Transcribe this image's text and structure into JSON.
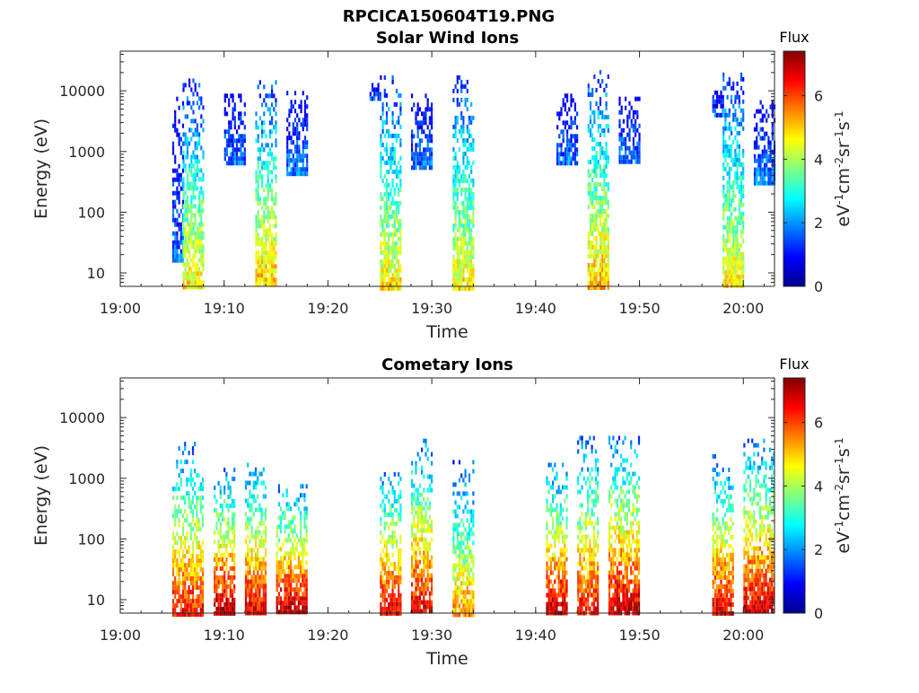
{
  "figure": {
    "title": "RPCICA150604T19.PNG"
  },
  "colors": {
    "colormap": [
      "#00008f",
      "#0000ff",
      "#0080ff",
      "#00ffff",
      "#80ff80",
      "#ffff00",
      "#ff8000",
      "#ff0000",
      "#800000"
    ]
  },
  "chart_data": [
    {
      "type": "heatmap",
      "title": "Solar Wind Ions",
      "xlabel": "Time",
      "ylabel": "Energy (eV)",
      "x_ticks": [
        "19:00",
        "19:10",
        "19:20",
        "19:30",
        "19:40",
        "19:50",
        "20:00"
      ],
      "x_range": [
        "19:00",
        "20:03"
      ],
      "y_scale": "log",
      "y_ticks": [
        10,
        100,
        1000,
        10000
      ],
      "y_tick_labels": [
        "10",
        "100",
        "1000",
        "10000"
      ],
      "y_range": [
        6,
        45000
      ],
      "colorbar": {
        "title": "Flux",
        "unit_label": "eV-1cm-2sr-1s-1",
        "range": [
          0,
          7.4
        ],
        "ticks": [
          "0",
          "2",
          "4",
          "6"
        ]
      },
      "clusters": [
        {
          "t_start": "19:05",
          "t_end": "19:06",
          "e_min": 15,
          "e_max": 8000,
          "flux_high": 1.8
        },
        {
          "t_start": "19:06",
          "t_end": "19:08",
          "e_min": 6,
          "e_max": 16000,
          "flux_high": 4.8
        },
        {
          "t_start": "19:10",
          "t_end": "19:12",
          "e_min": 600,
          "e_max": 9000,
          "flux_high": 1.8
        },
        {
          "t_start": "19:13",
          "t_end": "19:15",
          "e_min": 6,
          "e_max": 15000,
          "flux_high": 5.2
        },
        {
          "t_start": "19:16",
          "t_end": "19:18",
          "e_min": 400,
          "e_max": 10000,
          "flux_high": 1.8
        },
        {
          "t_start": "19:24",
          "t_end": "19:25",
          "e_min": 8000,
          "e_max": 16000,
          "flux_high": 1.5
        },
        {
          "t_start": "19:25",
          "t_end": "19:27",
          "e_min": 6,
          "e_max": 18000,
          "flux_high": 4.8
        },
        {
          "t_start": "19:28",
          "t_end": "19:30",
          "e_min": 500,
          "e_max": 9000,
          "flux_high": 1.8
        },
        {
          "t_start": "19:32",
          "t_end": "19:34",
          "e_min": 6,
          "e_max": 18000,
          "flux_high": 4.8
        },
        {
          "t_start": "19:42",
          "t_end": "19:44",
          "e_min": 600,
          "e_max": 9000,
          "flux_high": 1.8
        },
        {
          "t_start": "19:45",
          "t_end": "19:47",
          "e_min": 6,
          "e_max": 22000,
          "flux_high": 5.2
        },
        {
          "t_start": "19:48",
          "t_end": "19:50",
          "e_min": 700,
          "e_max": 8000,
          "flux_high": 1.8
        },
        {
          "t_start": "19:57",
          "t_end": "19:58",
          "e_min": 4000,
          "e_max": 12000,
          "flux_high": 1.5
        },
        {
          "t_start": "19:58",
          "t_end": "20:00",
          "e_min": 6,
          "e_max": 20000,
          "flux_high": 4.8
        },
        {
          "t_start": "20:01",
          "t_end": "20:03",
          "e_min": 300,
          "e_max": 7000,
          "flux_high": 2.0
        }
      ]
    },
    {
      "type": "heatmap",
      "title": "Cometary Ions",
      "xlabel": "Time",
      "ylabel": "Energy (eV)",
      "x_ticks": [
        "19:00",
        "19:10",
        "19:20",
        "19:30",
        "19:40",
        "19:50",
        "20:00"
      ],
      "x_range": [
        "19:00",
        "20:03"
      ],
      "y_scale": "log",
      "y_ticks": [
        10,
        100,
        1000,
        10000
      ],
      "y_tick_labels": [
        "10",
        "100",
        "1000",
        "10000"
      ],
      "y_range": [
        6,
        45000
      ],
      "colorbar": {
        "title": "Flux",
        "unit_label": "eV-1cm-2sr-1s-1",
        "range": [
          0,
          7.4
        ],
        "ticks": [
          "0",
          "2",
          "4",
          "6"
        ]
      },
      "clusters": [
        {
          "t_start": "19:05",
          "t_end": "19:08",
          "e_min": 6,
          "e_max": 4000,
          "flux_high": 6.5
        },
        {
          "t_start": "19:09",
          "t_end": "19:11",
          "e_min": 6,
          "e_max": 1500,
          "flux_high": 7.2
        },
        {
          "t_start": "19:12",
          "t_end": "19:14",
          "e_min": 6,
          "e_max": 1800,
          "flux_high": 6.8
        },
        {
          "t_start": "19:15",
          "t_end": "19:18",
          "e_min": 6,
          "e_max": 800,
          "flux_high": 7.2
        },
        {
          "t_start": "19:25",
          "t_end": "19:27",
          "e_min": 6,
          "e_max": 1500,
          "flux_high": 6.8
        },
        {
          "t_start": "19:28",
          "t_end": "19:30",
          "e_min": 6,
          "e_max": 4500,
          "flux_high": 6.8
        },
        {
          "t_start": "19:32",
          "t_end": "19:34",
          "e_min": 6,
          "e_max": 2000,
          "flux_high": 5.5
        },
        {
          "t_start": "19:41",
          "t_end": "19:43",
          "e_min": 6,
          "e_max": 1800,
          "flux_high": 7.0
        },
        {
          "t_start": "19:44",
          "t_end": "19:46",
          "e_min": 6,
          "e_max": 5000,
          "flux_high": 6.5
        },
        {
          "t_start": "19:47",
          "t_end": "19:50",
          "e_min": 6,
          "e_max": 5000,
          "flux_high": 7.0
        },
        {
          "t_start": "19:57",
          "t_end": "19:59",
          "e_min": 6,
          "e_max": 2500,
          "flux_high": 6.8
        },
        {
          "t_start": "20:00",
          "t_end": "20:03",
          "e_min": 6,
          "e_max": 4500,
          "flux_high": 7.0
        }
      ]
    }
  ]
}
